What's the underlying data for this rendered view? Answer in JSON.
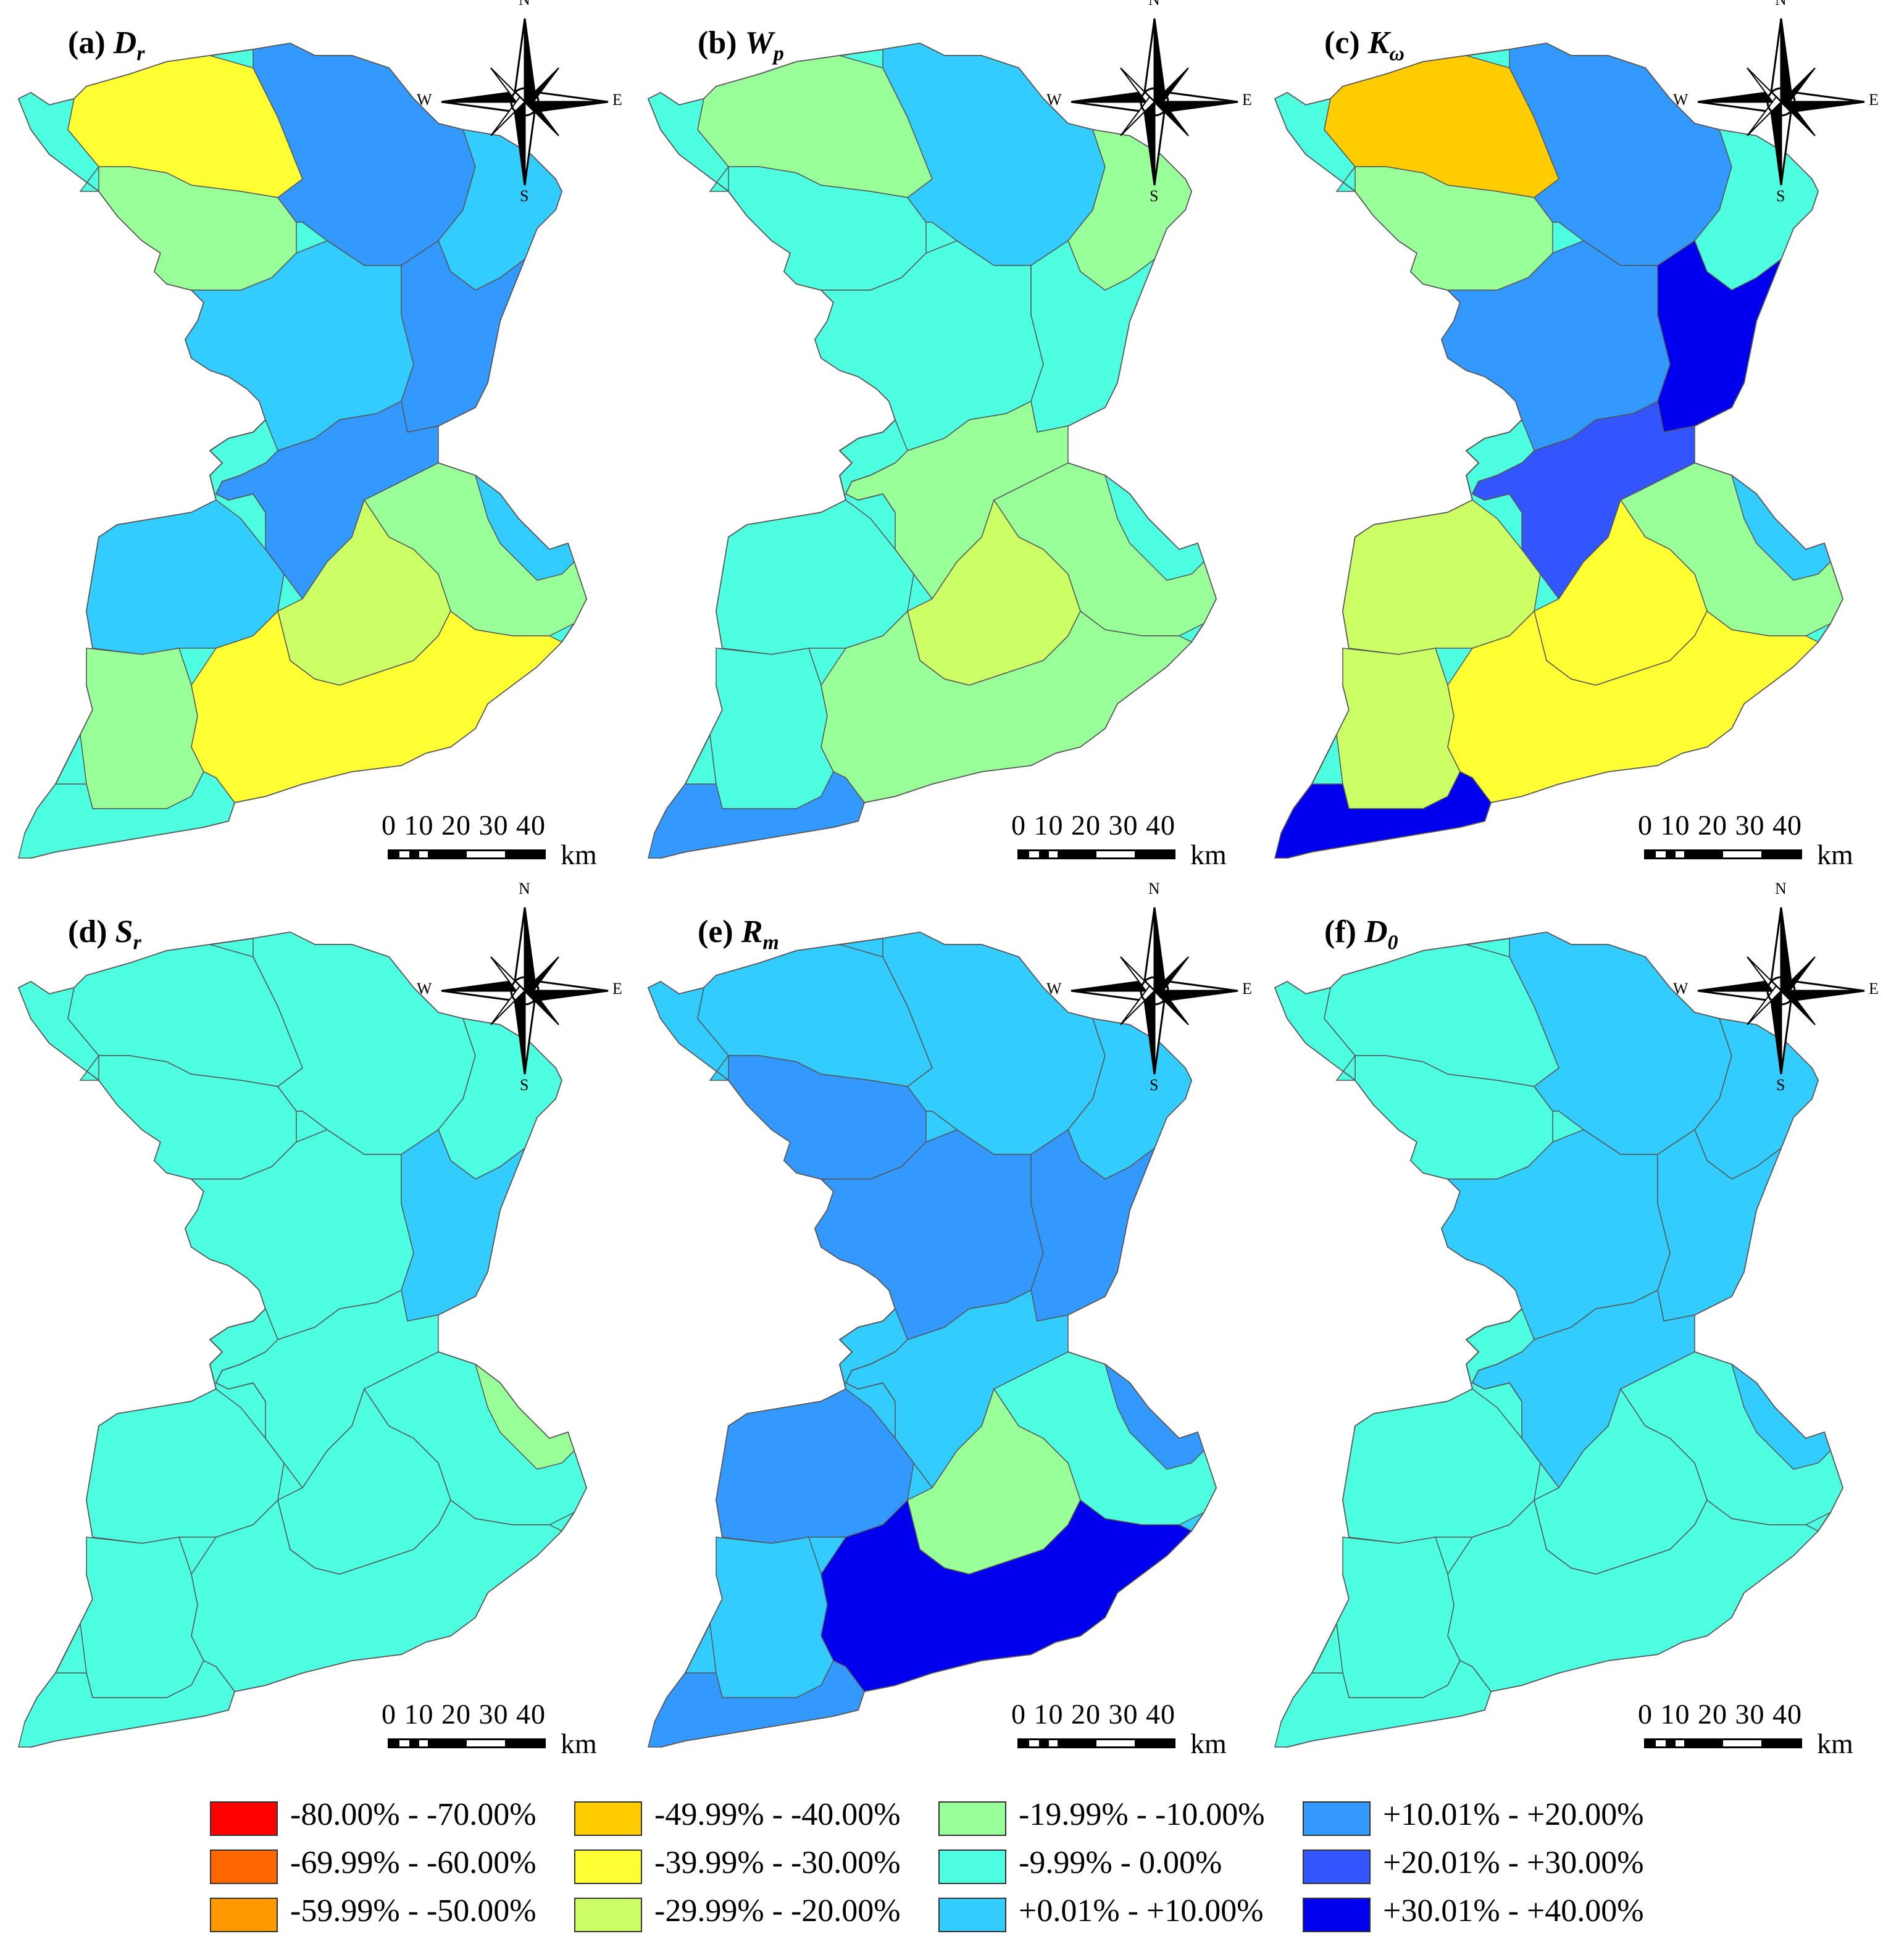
{
  "compass": {
    "n": "N",
    "s": "S",
    "e": "E",
    "w": "W"
  },
  "scale": {
    "ticks": "0 10 20 30 40",
    "unit": "km"
  },
  "legend": [
    {
      "label": "-80.00% - -70.00%",
      "color": "#ff0000"
    },
    {
      "label": "-69.99% - -60.00%",
      "color": "#ff6600"
    },
    {
      "label": "-59.99% - -50.00%",
      "color": "#ff9900"
    },
    {
      "label": "-49.99% - -40.00%",
      "color": "#ffcc00"
    },
    {
      "label": "-39.99% - -30.00%",
      "color": "#ffff33"
    },
    {
      "label": "-29.99% - -20.00%",
      "color": "#ccff66"
    },
    {
      "label": "-19.99% - -10.00%",
      "color": "#99ff99"
    },
    {
      "label": "-9.99% - 0.00%",
      "color": "#4dffe0"
    },
    {
      "label": "+0.01% - +10.00%",
      "color": "#33ccff"
    },
    {
      "label": "+10.01% - +20.00%",
      "color": "#3399ff"
    },
    {
      "label": "+20.01% - +30.00%",
      "color": "#3355ff"
    },
    {
      "label": "+30.01% - +40.00%",
      "color": "#0000ee"
    }
  ],
  "panels": [
    {
      "letter": "(a)",
      "symbol": "D",
      "sub": "r",
      "fills": [
        "#4dffe0",
        "#ffff33",
        "#99ff99",
        "#3399ff",
        "#33ccff",
        "#33ccff",
        "#3399ff",
        "#3399ff",
        "#33ccff",
        "#99ff99",
        "#99ff99",
        "#ccff66",
        "#ffff33",
        "#4dffe0",
        "#33ccff"
      ]
    },
    {
      "letter": "(b)",
      "symbol": "W",
      "sub": "p",
      "fills": [
        "#4dffe0",
        "#99ff99",
        "#4dffe0",
        "#33ccff",
        "#99ff99",
        "#4dffe0",
        "#4dffe0",
        "#99ff99",
        "#4dffe0",
        "#4dffe0",
        "#99ff99",
        "#ccff66",
        "#99ff99",
        "#3399ff",
        "#4dffe0"
      ]
    },
    {
      "letter": "(c)",
      "symbol": "K",
      "sub": "ω",
      "fills": [
        "#4dffe0",
        "#ffcc00",
        "#99ff99",
        "#3399ff",
        "#4dffe0",
        "#3399ff",
        "#0000ee",
        "#3355ff",
        "#ccff66",
        "#ccff66",
        "#99ff99",
        "#ffff33",
        "#ffff33",
        "#0000ee",
        "#33ccff"
      ]
    },
    {
      "letter": "(d)",
      "symbol": "S",
      "sub": "r",
      "fills": [
        "#4dffe0",
        "#4dffe0",
        "#4dffe0",
        "#4dffe0",
        "#4dffe0",
        "#4dffe0",
        "#33ccff",
        "#4dffe0",
        "#4dffe0",
        "#4dffe0",
        "#4dffe0",
        "#4dffe0",
        "#4dffe0",
        "#4dffe0",
        "#99ff99"
      ]
    },
    {
      "letter": "(e)",
      "symbol": "R",
      "sub": "m",
      "fills": [
        "#33ccff",
        "#33ccff",
        "#3399ff",
        "#33ccff",
        "#33ccff",
        "#3399ff",
        "#3399ff",
        "#33ccff",
        "#3399ff",
        "#33ccff",
        "#4dffe0",
        "#99ff99",
        "#0000ee",
        "#3399ff",
        "#3399ff"
      ]
    },
    {
      "letter": "(f)",
      "symbol": "D",
      "sub": "0",
      "fills": [
        "#4dffe0",
        "#4dffe0",
        "#4dffe0",
        "#33ccff",
        "#33ccff",
        "#33ccff",
        "#33ccff",
        "#33ccff",
        "#4dffe0",
        "#4dffe0",
        "#4dffe0",
        "#4dffe0",
        "#4dffe0",
        "#4dffe0",
        "#33ccff"
      ]
    }
  ]
}
